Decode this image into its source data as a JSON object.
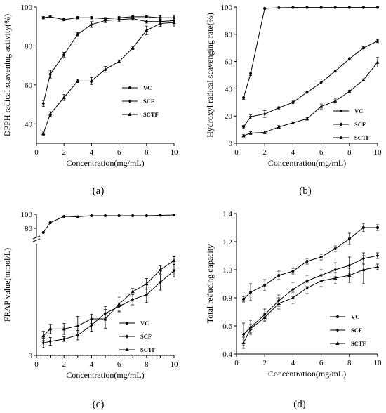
{
  "figure": {
    "labels": [
      "(a)",
      "(b)",
      "(c)",
      "(d)"
    ]
  },
  "chart_data": [
    {
      "type": "line",
      "panel": "(a)",
      "xlabel": "Concentration(mg/mL)",
      "ylabel": "DPPH radical scavening activity(%)",
      "xlim": [
        0,
        10
      ],
      "ylim": [
        30,
        100
      ],
      "xticks": [
        "0",
        "2",
        "4",
        "6",
        "8",
        "10"
      ],
      "yticks": [
        "40",
        "60",
        "80",
        "100"
      ],
      "legend_position": "bottom-right",
      "x": [
        0.5,
        1,
        2,
        3,
        4,
        5,
        6,
        7,
        8,
        9,
        10
      ],
      "series": [
        {
          "name": "VC",
          "marker": "circle",
          "values": [
            94.5,
            95,
            93.5,
            94.5,
            94.5,
            94,
            94.5,
            95,
            95,
            94.5,
            94.5
          ],
          "error": [
            0.6,
            0.6,
            0.6,
            0.6,
            0.6,
            0.6,
            0.6,
            0.6,
            0.6,
            1.0,
            1.2
          ]
        },
        {
          "name": "SCF",
          "marker": "diamond",
          "values": [
            50.5,
            65.5,
            75.5,
            86,
            91,
            93,
            93.5,
            94,
            92.5,
            92.5,
            93
          ],
          "error": [
            1.5,
            2,
            1.2,
            0.8,
            1.5,
            1,
            0.8,
            0.8,
            0.8,
            1.2,
            1.5
          ]
        },
        {
          "name": "SCTF",
          "marker": "triangle",
          "values": [
            35,
            45,
            53.5,
            62,
            62,
            68,
            72,
            79,
            88,
            91.5,
            92
          ],
          "error": [
            0.8,
            1.2,
            1.5,
            0.8,
            1.8,
            1.5,
            0.6,
            0.8,
            2.2,
            1.5,
            2.2
          ]
        }
      ]
    },
    {
      "type": "line",
      "panel": "(b)",
      "xlabel": "Concentration(mg/mL)",
      "ylabel": "Hydroxyl radical scavenging rate(%)",
      "xlim": [
        0,
        10
      ],
      "ylim": [
        0,
        100
      ],
      "xticks": [
        "0",
        "2",
        "4",
        "6",
        "8",
        "10"
      ],
      "yticks": [
        "0",
        "20",
        "40",
        "60",
        "80",
        "100"
      ],
      "legend_position": "middle-right",
      "x": [
        0.5,
        1,
        2,
        3,
        4,
        5,
        6,
        7,
        8,
        9,
        10
      ],
      "series": [
        {
          "name": "VC",
          "marker": "circle",
          "values": [
            33.5,
            51,
            99,
            99.5,
            99.7,
            99.7,
            99.7,
            99.7,
            99.7,
            99.7,
            99.7
          ],
          "error": [
            1.2,
            1.2,
            0.5,
            0.3,
            0.3,
            0.3,
            0.3,
            0.3,
            0.3,
            0.3,
            0.3
          ]
        },
        {
          "name": "SCF",
          "marker": "diamond",
          "values": [
            12,
            19.5,
            21.5,
            26,
            30,
            37.5,
            44.5,
            53,
            62,
            70,
            75
          ],
          "error": [
            1.2,
            1.5,
            2.5,
            0.8,
            1,
            0.8,
            1,
            0.8,
            0.8,
            0.8,
            1.2
          ]
        },
        {
          "name": "SCTF",
          "marker": "triangle",
          "values": [
            5.5,
            7.5,
            8,
            12,
            15,
            18,
            27,
            31,
            38,
            46.5,
            59.5
          ],
          "error": [
            0.8,
            1,
            1,
            1,
            0.8,
            1,
            1.8,
            1.5,
            1,
            0.8,
            3.5
          ]
        }
      ]
    },
    {
      "type": "line",
      "panel": "(c)",
      "xlabel": "Concentration(mg/mL)",
      "ylabel": "FRAP value(mmol/L)",
      "xlim": [
        0,
        10
      ],
      "yticks": [
        "0",
        "80",
        "100"
      ],
      "broken_axis": true,
      "legend_position": "bottom-center",
      "x": [
        0.5,
        1,
        2,
        3,
        4,
        5,
        6,
        7,
        8,
        9,
        10
      ],
      "series": [
        {
          "name": "VC",
          "marker": "circle",
          "values": [
            74,
            88,
            97,
            96.5,
            98,
            98,
            98,
            98,
            98,
            98.5,
            99
          ],
          "error": [
            0.5,
            0.5,
            0.5,
            0.5,
            0.5,
            0.5,
            0.5,
            0.5,
            0.5,
            0.5,
            0.5
          ]
        },
        {
          "name": "SCF",
          "marker": "diamond",
          "values": [
            8,
            9,
            10.5,
            13,
            19.5,
            27,
            31.5,
            36,
            39,
            47,
            54.5
          ],
          "error": [
            3,
            2.5,
            1.5,
            3,
            4,
            4.5,
            3.5,
            3.5,
            5,
            5,
            4
          ]
        },
        {
          "name": "SCTF",
          "marker": "triangle",
          "values": [
            12.5,
            17,
            17,
            19,
            23.5,
            23.5,
            33,
            41,
            46,
            55,
            61
          ],
          "error": [
            3,
            3,
            3.5,
            6,
            3,
            6,
            4.5,
            2,
            3.5,
            2.5,
            2.5
          ]
        }
      ]
    },
    {
      "type": "line",
      "panel": "(d)",
      "xlabel": "Concentration(mg/mL)",
      "ylabel": "Total reducing capacity",
      "xlim": [
        0,
        10
      ],
      "ylim": [
        0.4,
        1.4
      ],
      "xticks": [
        "0",
        "2",
        "4",
        "6",
        "8",
        "10"
      ],
      "yticks": [
        "0.4",
        "0.6",
        "0.8",
        "1.0",
        "1.2",
        "1.4"
      ],
      "legend_position": "bottom-right",
      "x": [
        0.5,
        1,
        2,
        3,
        4,
        5,
        6,
        7,
        8,
        9,
        10
      ],
      "series": [
        {
          "name": "VC",
          "marker": "circle",
          "values": [
            0.79,
            0.84,
            0.89,
            0.96,
            0.99,
            1.06,
            1.09,
            1.15,
            1.22,
            1.3,
            1.3
          ],
          "error": [
            0.02,
            0.06,
            0.04,
            0.03,
            0.02,
            0.02,
            0.02,
            0.02,
            0.04,
            0.03,
            0.02
          ]
        },
        {
          "name": "SCF",
          "marker": "diamond",
          "values": [
            0.54,
            0.59,
            0.68,
            0.78,
            0.86,
            0.92,
            0.96,
            1.0,
            1.03,
            1.08,
            1.1
          ],
          "error": [
            0.08,
            0.05,
            0.04,
            0.04,
            0.05,
            0.04,
            0.04,
            0.05,
            0.06,
            0.04,
            0.02
          ]
        },
        {
          "name": "SCTF",
          "marker": "triangle",
          "values": [
            0.48,
            0.58,
            0.66,
            0.76,
            0.8,
            0.87,
            0.92,
            0.94,
            0.96,
            1.0,
            1.02
          ],
          "error": [
            0.04,
            0.03,
            0.03,
            0.04,
            0.04,
            0.04,
            0.04,
            0.04,
            0.05,
            0.1,
            0.02
          ]
        }
      ]
    }
  ]
}
